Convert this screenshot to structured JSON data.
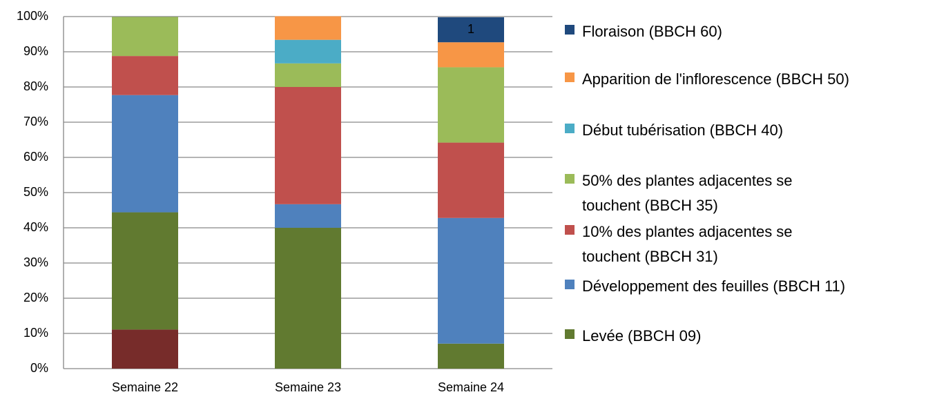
{
  "chart_data": {
    "type": "stacked_bar",
    "categories": [
      "Semaine 22",
      "Semaine 23",
      "Semaine 24"
    ],
    "series": [
      {
        "name": null,
        "color": "#772c2a",
        "values": [
          11.1,
          0,
          0
        ]
      },
      {
        "name": "Levée (BBCH 09)",
        "color": "#617a30",
        "values": [
          33.3,
          40,
          7.1
        ]
      },
      {
        "name": "Développement des feuilles (BBCH 11)",
        "color": "#4f81bd",
        "values": [
          33.3,
          6.7,
          35.7
        ]
      },
      {
        "name": "10% des plantes adjacentes se\ntouchent  (BBCH 31)",
        "color": "#c0504d",
        "values": [
          11.1,
          33.3,
          21.4
        ]
      },
      {
        "name": "50% des plantes adjacentes se\ntouchent  (BBCH 35)",
        "color": "#9bbb59",
        "values": [
          11.1,
          6.7,
          21.4
        ]
      },
      {
        "name": "Début tubérisation (BBCH 40)",
        "color": "#4bacc6",
        "values": [
          0,
          6.7,
          0
        ]
      },
      {
        "name": "Apparition de l'inflorescence (BBCH 50)",
        "color": "#f79646",
        "values": [
          0,
          6.7,
          7.1
        ]
      },
      {
        "name": "Floraison (BBCH 60)",
        "color": "#1f497d",
        "values": [
          0,
          0,
          7.1
        ]
      }
    ],
    "annotations": [
      {
        "text": "1",
        "series": 7,
        "category": 2
      }
    ],
    "ylim": [
      0,
      100
    ],
    "yticks": [
      {
        "value": 0,
        "label": "0%"
      },
      {
        "value": 10,
        "label": "10%"
      },
      {
        "value": 20,
        "label": "20%"
      },
      {
        "value": 30,
        "label": "30%"
      },
      {
        "value": 40,
        "label": "40%"
      },
      {
        "value": 50,
        "label": "50%"
      },
      {
        "value": 60,
        "label": "60%"
      },
      {
        "value": 70,
        "label": "70%"
      },
      {
        "value": 80,
        "label": "80%"
      },
      {
        "value": 90,
        "label": "90%"
      },
      {
        "value": 100,
        "label": "100%"
      }
    ],
    "grid": true,
    "legend": "right"
  }
}
